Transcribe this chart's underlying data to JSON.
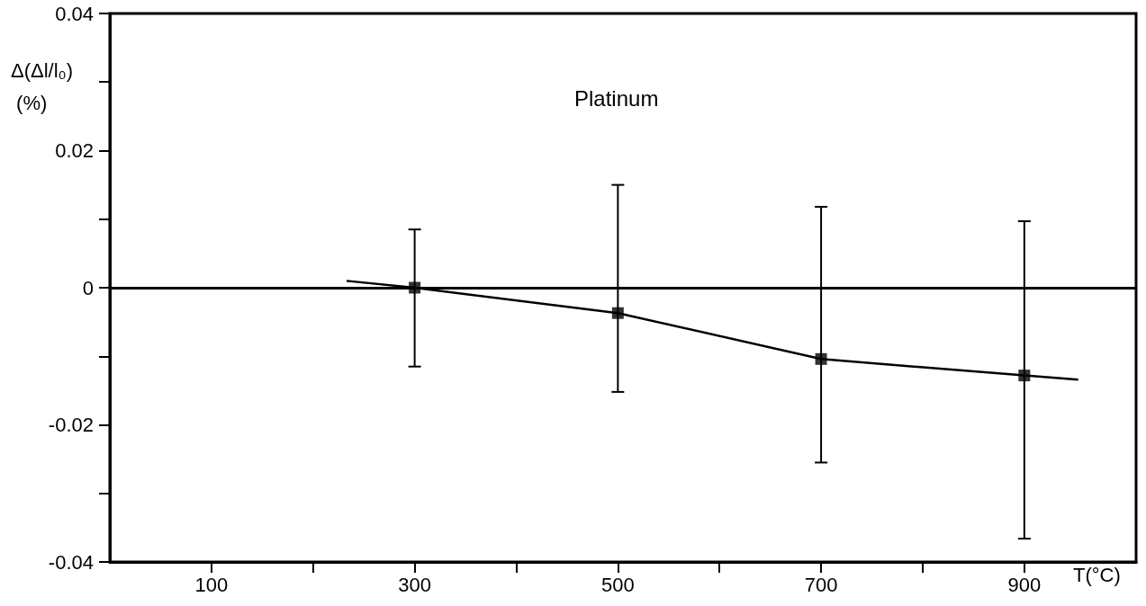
{
  "chart_data": {
    "type": "scatter",
    "xlabel": "T(°C)",
    "ylabel": "Δ(Δl/l₀) (%)",
    "annotations": [
      "Platinum"
    ],
    "xlim": [
      0,
      1010
    ],
    "xticks": [
      100,
      {
        "value": 200,
        "label": null
      },
      300,
      {
        "value": 400,
        "label": null
      },
      500,
      {
        "value": 600,
        "label": null
      },
      700,
      {
        "value": 800,
        "label": null
      },
      900
    ],
    "ylim": [
      -0.04,
      0.04
    ],
    "yticks": [
      -0.04,
      {
        "value": -0.03,
        "label": null
      },
      -0.02,
      {
        "value": -0.01,
        "label": null
      },
      0,
      {
        "value": 0.01,
        "label": null
      },
      0.02,
      {
        "value": 0.03,
        "label": null
      },
      0.04
    ],
    "ref_lines": [
      {
        "axis": "y",
        "value": 0
      }
    ],
    "marker": "square",
    "series": [
      {
        "color": "#000000",
        "x": [
          300,
          500,
          700,
          900
        ],
        "values": [
          0,
          -0.0037,
          -0.0104,
          -0.0128
        ],
        "errors": [
          [
            -0.0115,
            0.0085
          ],
          [
            -0.0152,
            0.015
          ],
          [
            -0.0255,
            0.0118
          ],
          [
            -0.0366,
            0.0097
          ]
        ]
      },
      {
        "type": "line",
        "color": "#000000",
        "marker": "none",
        "x": [
          233,
          300,
          500,
          700,
          900,
          953
        ],
        "values": [
          0.001,
          0,
          -0.0037,
          -0.0104,
          -0.0128,
          -0.0134
        ]
      }
    ]
  }
}
